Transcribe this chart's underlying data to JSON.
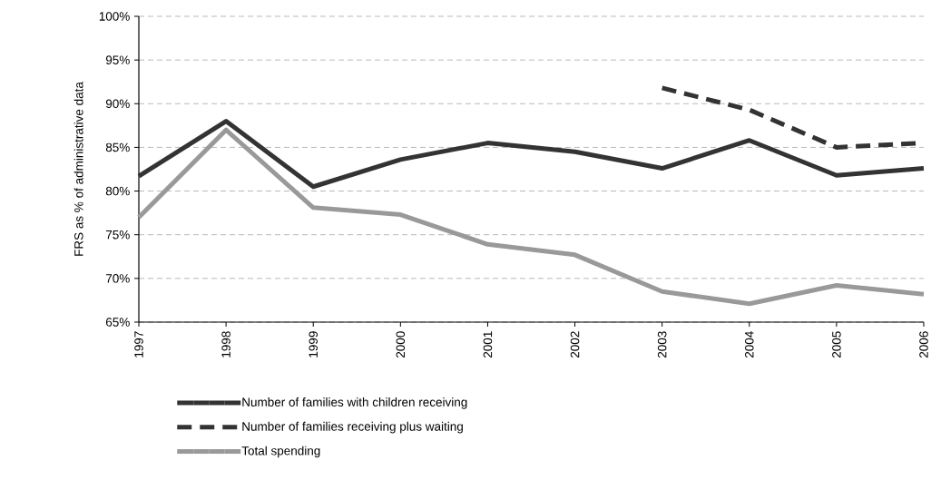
{
  "chart_data": {
    "type": "line",
    "ylabel": "FRS as % of administrative data",
    "categories": [
      "1997",
      "1998",
      "1999",
      "2000",
      "2001",
      "2002",
      "2003",
      "2004",
      "2005",
      "2006"
    ],
    "series": [
      {
        "name": "Number of families with children receiving",
        "color": "#333333",
        "line_style": "solid",
        "values": [
          81.7,
          88.0,
          80.5,
          83.6,
          85.5,
          84.5,
          82.6,
          85.8,
          81.8,
          82.6
        ]
      },
      {
        "name": "Number of families receiving plus waiting",
        "color": "#333333",
        "line_style": "dashed",
        "values": [
          null,
          null,
          null,
          null,
          null,
          null,
          91.8,
          89.3,
          85.0,
          85.5
        ]
      },
      {
        "name": "Total spending",
        "color": "#999999",
        "line_style": "solid",
        "values": [
          77.0,
          87.0,
          78.1,
          77.3,
          73.9,
          72.7,
          68.5,
          67.1,
          69.2,
          68.2
        ]
      }
    ],
    "ylim": [
      65,
      100
    ],
    "yticks": [
      {
        "value": 65,
        "label": "65%"
      },
      {
        "value": 70,
        "label": "70%"
      },
      {
        "value": 75,
        "label": "75%"
      },
      {
        "value": 80,
        "label": "80%"
      },
      {
        "value": 85,
        "label": "85%"
      },
      {
        "value": 90,
        "label": "90%"
      },
      {
        "value": 95,
        "label": "95%"
      },
      {
        "value": 100,
        "label": "100%"
      }
    ],
    "grid": "y",
    "legend": "bottom",
    "marker": "none"
  }
}
